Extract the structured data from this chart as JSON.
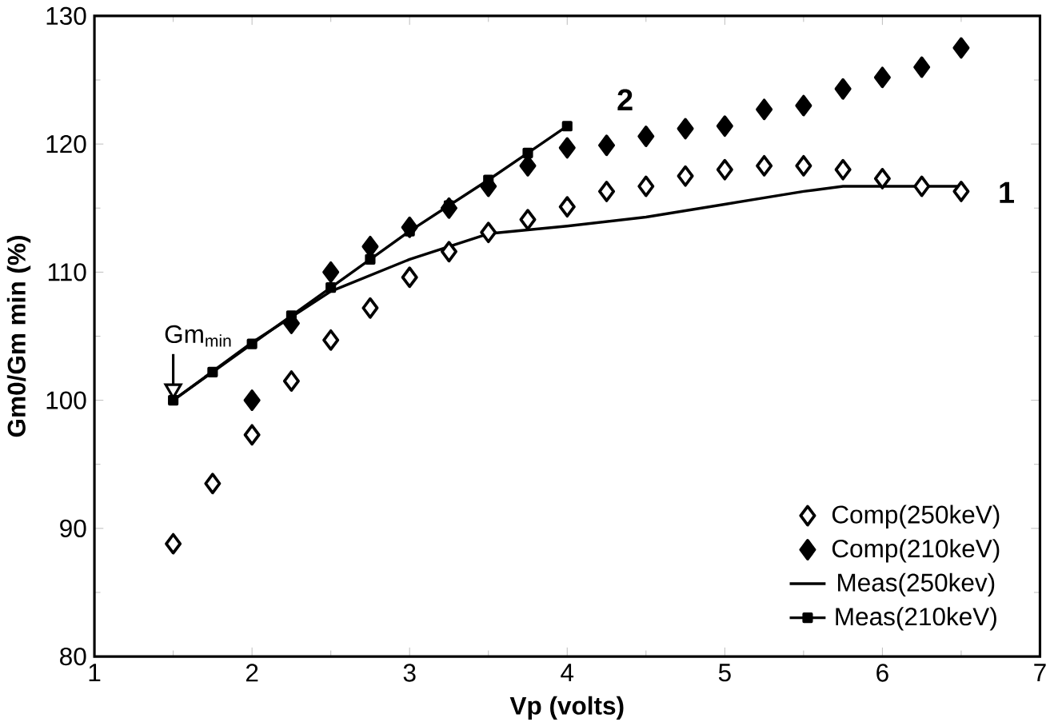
{
  "chart_data": {
    "type": "line",
    "xlabel": "Vp (volts)",
    "ylabel": "Gm0/Gm min (%)",
    "xlim": [
      1,
      7
    ],
    "ylim": [
      80,
      130
    ],
    "xticks": [
      1,
      2,
      3,
      4,
      5,
      6,
      7
    ],
    "yticks": [
      80,
      90,
      100,
      110,
      120,
      130
    ],
    "legend": "bottom right",
    "grid": false,
    "series": [
      {
        "name": "Comp(250keV)",
        "type": "scatter",
        "marker": "diamond",
        "color": "#000000",
        "x": [
          1.5,
          1.75,
          2,
          2.25,
          2.5,
          2.75,
          3,
          3.25,
          3.5,
          3.75,
          4,
          4.25,
          4.5,
          4.75,
          5,
          5.25,
          5.5,
          5.75,
          6,
          6.25,
          6.5
        ],
        "values": [
          88.8,
          93.5,
          97.3,
          101.5,
          104.7,
          107.2,
          109.6,
          111.6,
          113.1,
          114.1,
          115.1,
          116.3,
          116.7,
          117.5,
          118,
          118.3,
          118.3,
          118,
          117.3,
          116.7,
          116.3
        ]
      },
      {
        "name": "Comp(210keV)",
        "type": "scatter",
        "marker": "diamond",
        "color": "#000000",
        "x": [
          2,
          2.25,
          2.5,
          2.75,
          3,
          3.25,
          3.5,
          3.75,
          4,
          4.25,
          4.5,
          4.75,
          5,
          5.25,
          5.5,
          5.75,
          6,
          6.25,
          6.5
        ],
        "values": [
          100,
          106,
          110,
          112,
          113.5,
          115,
          116.7,
          118.3,
          119.7,
          119.9,
          120.6,
          121.2,
          121.4,
          122.7,
          123,
          124.3,
          125.2,
          126,
          127.5
        ]
      },
      {
        "name": "Meas(250kev)",
        "marker": "none",
        "line_style": "solid",
        "color": "#000000",
        "x": [
          1.5,
          2,
          2.25,
          2.5,
          3,
          3.5,
          4,
          4.5,
          5,
          5.5,
          5.75,
          6,
          6.5
        ],
        "values": [
          100,
          104.5,
          106.5,
          108.5,
          111,
          113,
          113.6,
          114.3,
          115.3,
          116.3,
          116.7,
          116.7,
          116.7
        ]
      },
      {
        "name": "Meas(210keV)",
        "marker": "square",
        "line_style": "solid",
        "color": "#000000",
        "x": [
          1.5,
          1.75,
          2,
          2.25,
          2.5,
          2.75,
          3,
          3.25,
          3.5,
          3.75,
          4
        ],
        "values": [
          100,
          102.2,
          104.4,
          106.6,
          108.8,
          111,
          113.2,
          115.2,
          117.2,
          119.3,
          121.4
        ]
      }
    ],
    "annotations": [
      {
        "text": "Gm$_{min}$",
        "x": 1.5,
        "y": 100
      },
      {
        "text": "1",
        "x": 6.5,
        "y": 116.3
      },
      {
        "text": "2",
        "x": 4.0,
        "y": 121.4
      }
    ]
  }
}
